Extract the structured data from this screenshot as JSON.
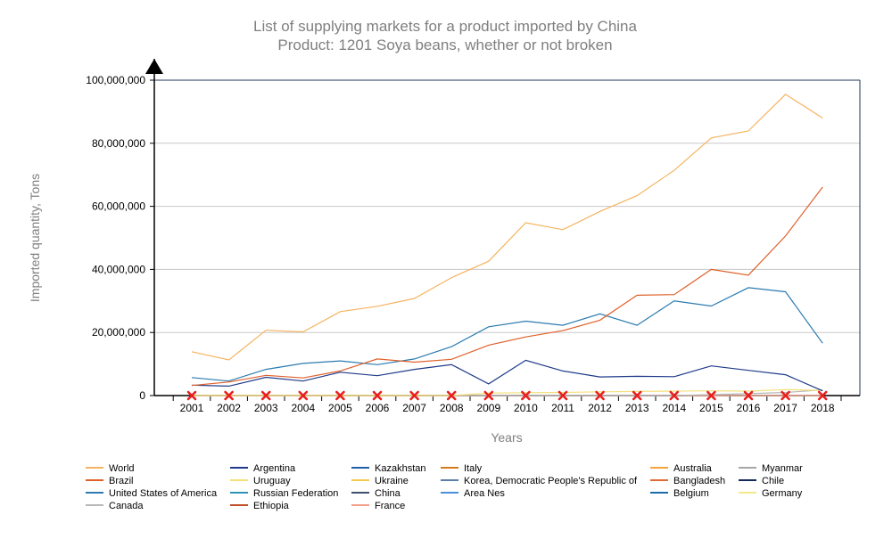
{
  "chart_data": {
    "type": "line",
    "title": "List of supplying markets for a product imported by China",
    "subtitle": "Product: 1201 Soya beans, whether or not broken",
    "xlabel": "Years",
    "ylabel": "Imported quantity, Tons",
    "x": [
      "2001",
      "2002",
      "2003",
      "2004",
      "2005",
      "2006",
      "2007",
      "2008",
      "2009",
      "2010",
      "2011",
      "2012",
      "2013",
      "2014",
      "2015",
      "2016",
      "2017",
      "2018"
    ],
    "ylim": [
      0,
      100000000
    ],
    "y_ticks": [
      {
        "value": 0,
        "label": "0"
      },
      {
        "value": 20000000,
        "label": "20,000,000"
      },
      {
        "value": 40000000,
        "label": "40,000,000"
      },
      {
        "value": 60000000,
        "label": "60,000,000"
      },
      {
        "value": 80000000,
        "label": "80,000,000"
      },
      {
        "value": 100000000,
        "label": "100,000,000"
      }
    ],
    "grid": true,
    "legend_position": "bottom",
    "series": [
      {
        "name": "World",
        "color": "#f5b461",
        "values": [
          13900000,
          11300000,
          20700000,
          20200000,
          26600000,
          28300000,
          30800000,
          37400000,
          42600000,
          54800000,
          52600000,
          58400000,
          63400000,
          71400000,
          81700000,
          83900000,
          95500000,
          88000000
        ]
      },
      {
        "name": "Argentina",
        "color": "#1f3a8a",
        "values": [
          3300000,
          3000000,
          5800000,
          4600000,
          7400000,
          6300000,
          8300000,
          9800000,
          3700000,
          11200000,
          7800000,
          5900000,
          6100000,
          6000000,
          9400000,
          8000000,
          6600000,
          1500000
        ]
      },
      {
        "name": "Kazakhstan",
        "color": "#1f5fa8",
        "values": [
          0,
          0,
          0,
          0,
          0,
          0,
          0,
          0,
          0,
          0,
          0,
          0,
          0,
          0,
          0,
          0,
          0,
          0
        ]
      },
      {
        "name": "Italy",
        "color": "#d47a1e",
        "values": [
          0,
          0,
          0,
          0,
          0,
          0,
          0,
          0,
          0,
          0,
          0,
          0,
          0,
          0,
          0,
          0,
          0,
          0
        ]
      },
      {
        "name": "Australia",
        "color": "#f3a53c",
        "values": [
          0,
          0,
          0,
          0,
          0,
          0,
          0,
          0,
          0,
          0,
          0,
          0,
          0,
          0,
          0,
          0,
          0,
          0
        ]
      },
      {
        "name": "Myanmar",
        "color": "#a6a6a6",
        "values": [
          0,
          0,
          0,
          0,
          0,
          0,
          0,
          0,
          0,
          0,
          0,
          0,
          0,
          0,
          0,
          0,
          0,
          0
        ]
      },
      {
        "name": "Brazil",
        "color": "#e0602a",
        "values": [
          3200000,
          4300000,
          6400000,
          5600000,
          7800000,
          11600000,
          10600000,
          11500000,
          16000000,
          18600000,
          20600000,
          23900000,
          31800000,
          32000000,
          40000000,
          38200000,
          50600000,
          66100000
        ]
      },
      {
        "name": "Uruguay",
        "color": "#f5e07a",
        "values": [
          0,
          0,
          0,
          0,
          0,
          0,
          0,
          0,
          800000,
          900000,
          1000000,
          1200000,
          1300000,
          1400000,
          1500000,
          1400000,
          1900000,
          1600000
        ]
      },
      {
        "name": "Ukraine",
        "color": "#f2c94c",
        "values": [
          0,
          0,
          0,
          0,
          0,
          0,
          0,
          0,
          0,
          0,
          0,
          0,
          0,
          0,
          0,
          0,
          0,
          0
        ]
      },
      {
        "name": "Korea, Democratic People's Republic of",
        "color": "#5b7fa6",
        "values": [
          0,
          0,
          0,
          0,
          0,
          0,
          0,
          0,
          0,
          0,
          0,
          0,
          0,
          0,
          0,
          0,
          0,
          0
        ]
      },
      {
        "name": "Bangladesh",
        "color": "#e06a3a",
        "values": [
          0,
          0,
          0,
          0,
          0,
          0,
          0,
          0,
          0,
          0,
          0,
          0,
          0,
          0,
          0,
          0,
          0,
          0
        ]
      },
      {
        "name": "Chile",
        "color": "#14285a",
        "values": [
          0,
          0,
          0,
          0,
          0,
          0,
          0,
          0,
          0,
          0,
          0,
          0,
          0,
          0,
          0,
          0,
          0,
          0
        ]
      },
      {
        "name": "United States of America",
        "color": "#2b7bb0",
        "values": [
          5700000,
          4600000,
          8300000,
          10200000,
          11000000,
          9800000,
          11600000,
          15500000,
          21800000,
          23600000,
          22300000,
          25900000,
          22300000,
          30000000,
          28400000,
          34200000,
          32900000,
          16600000
        ]
      },
      {
        "name": "Russian Federation",
        "color": "#2f93b8",
        "values": [
          0,
          0,
          0,
          0,
          0,
          0,
          0,
          0,
          0,
          0,
          0,
          0,
          0,
          0,
          0,
          0,
          0,
          0
        ]
      },
      {
        "name": "China",
        "color": "#3d4f6a",
        "values": [
          0,
          0,
          0,
          0,
          0,
          0,
          0,
          0,
          0,
          0,
          0,
          0,
          0,
          0,
          0,
          0,
          0,
          0
        ]
      },
      {
        "name": "Area Nes",
        "color": "#4a90d9",
        "values": [
          0,
          0,
          0,
          0,
          0,
          0,
          0,
          0,
          0,
          0,
          0,
          0,
          0,
          0,
          0,
          0,
          0,
          0
        ]
      },
      {
        "name": "Belgium",
        "color": "#1a6ea8",
        "values": [
          0,
          0,
          0,
          0,
          0,
          0,
          0,
          0,
          0,
          0,
          0,
          0,
          0,
          0,
          0,
          0,
          0,
          0
        ]
      },
      {
        "name": "Germany",
        "color": "#f5e88a",
        "values": [
          0,
          0,
          0,
          0,
          0,
          0,
          0,
          0,
          0,
          0,
          0,
          0,
          0,
          0,
          0,
          0,
          0,
          0
        ]
      },
      {
        "name": "Canada",
        "color": "#b8b8b8",
        "values": [
          0,
          0,
          0,
          0,
          0,
          0,
          0,
          0,
          0,
          0,
          0,
          0,
          0,
          0,
          300000,
          600000,
          1000000,
          1800000
        ]
      },
      {
        "name": "Ethiopia",
        "color": "#c0502a",
        "values": [
          0,
          0,
          0,
          0,
          0,
          0,
          0,
          0,
          0,
          0,
          0,
          0,
          0,
          0,
          0,
          0,
          0,
          0
        ]
      },
      {
        "name": "France",
        "color": "#f2a08a",
        "values": [
          0,
          0,
          0,
          0,
          0,
          0,
          0,
          0,
          0,
          0,
          0,
          0,
          0,
          0,
          0,
          0,
          0,
          0
        ]
      }
    ],
    "marker": {
      "shape": "x",
      "color": "#e8201e"
    }
  }
}
